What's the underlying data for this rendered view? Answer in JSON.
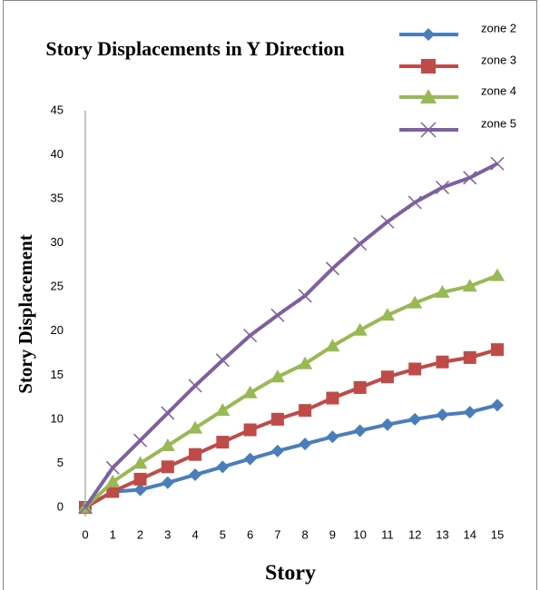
{
  "chart_data": {
    "type": "line",
    "title": "Story Displacements in Y Direction",
    "x_label": "Story",
    "y_label": "Story  Displacement",
    "x": [
      0,
      1,
      2,
      3,
      4,
      5,
      6,
      7,
      8,
      9,
      10,
      11,
      12,
      13,
      14,
      15
    ],
    "xlim": [
      0,
      15
    ],
    "xticks": [
      0,
      1,
      2,
      3,
      4,
      5,
      6,
      7,
      8,
      9,
      10,
      11,
      12,
      13,
      14,
      15
    ],
    "ylim": [
      -1,
      45
    ],
    "yticks": [
      0,
      5,
      10,
      15,
      20,
      25,
      30,
      35,
      40,
      45
    ],
    "legend": "top-right",
    "series": [
      {
        "name": "zone 2",
        "color": "#4a7ebb",
        "marker": "diamond",
        "values": [
          0,
          1.8,
          2,
          2.8,
          3.7,
          4.6,
          5.5,
          6.4,
          7.2,
          8,
          8.7,
          9.4,
          10,
          10.5,
          10.8,
          11.6
        ]
      },
      {
        "name": "zone 3",
        "color": "#be4b48",
        "marker": "square",
        "values": [
          0,
          1.8,
          3.2,
          4.6,
          6,
          7.4,
          8.8,
          10,
          11,
          12.4,
          13.6,
          14.8,
          15.7,
          16.5,
          17,
          17.9
        ]
      },
      {
        "name": "zone 4",
        "color": "#98b954",
        "marker": "triangle",
        "values": [
          0,
          2.9,
          5,
          7,
          9,
          11,
          13,
          14.8,
          16.3,
          18.3,
          20.1,
          21.8,
          23.2,
          24.4,
          25.1,
          26.3
        ]
      },
      {
        "name": "zone 5",
        "color": "#7d60a0",
        "marker": "x",
        "values": [
          0,
          4.5,
          7.6,
          10.7,
          13.8,
          16.7,
          19.5,
          21.8,
          24,
          27.1,
          29.9,
          32.4,
          34.6,
          36.3,
          37.4,
          39
        ]
      }
    ]
  }
}
